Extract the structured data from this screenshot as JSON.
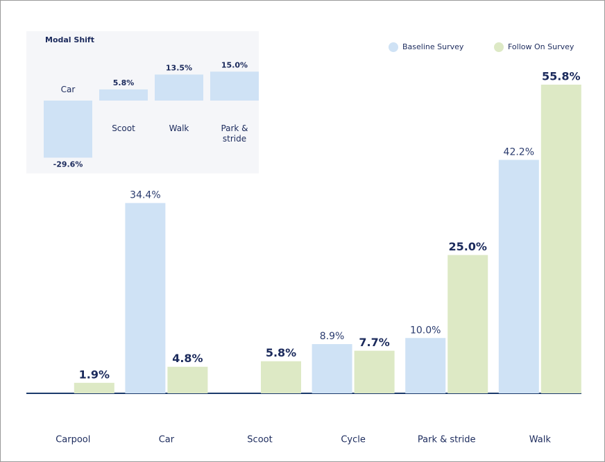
{
  "chart_data": [
    {
      "type": "bar",
      "categories": [
        "Carpool",
        "Car",
        "Scoot",
        "Cycle",
        "Park & stride",
        "Walk"
      ],
      "series": [
        {
          "name": "Baseline Survey",
          "color": "#cfe2f5",
          "values": [
            null,
            34.4,
            null,
            8.9,
            10.0,
            42.2
          ],
          "value_labels": [
            null,
            "34.4%",
            null,
            "8.9%",
            "10.0%",
            "42.2%"
          ]
        },
        {
          "name": "Follow On Survey",
          "color": "#dde9c5",
          "values": [
            1.9,
            4.8,
            5.8,
            7.7,
            25.0,
            55.8
          ],
          "value_labels": [
            "1.9%",
            "4.8%",
            "5.8%",
            "7.7%",
            "25.0%",
            "55.8%"
          ]
        }
      ],
      "legend": "top-right"
    },
    {
      "type": "bar",
      "title": "Modal Shift",
      "categories": [
        "Car",
        "Scoot",
        "Walk",
        "Park & stride"
      ],
      "values": [
        -29.6,
        5.8,
        13.5,
        15.0
      ],
      "value_labels": [
        "-29.6%",
        "5.8%",
        "13.5%",
        "15.0%"
      ],
      "color": "#cfe2f5"
    }
  ]
}
